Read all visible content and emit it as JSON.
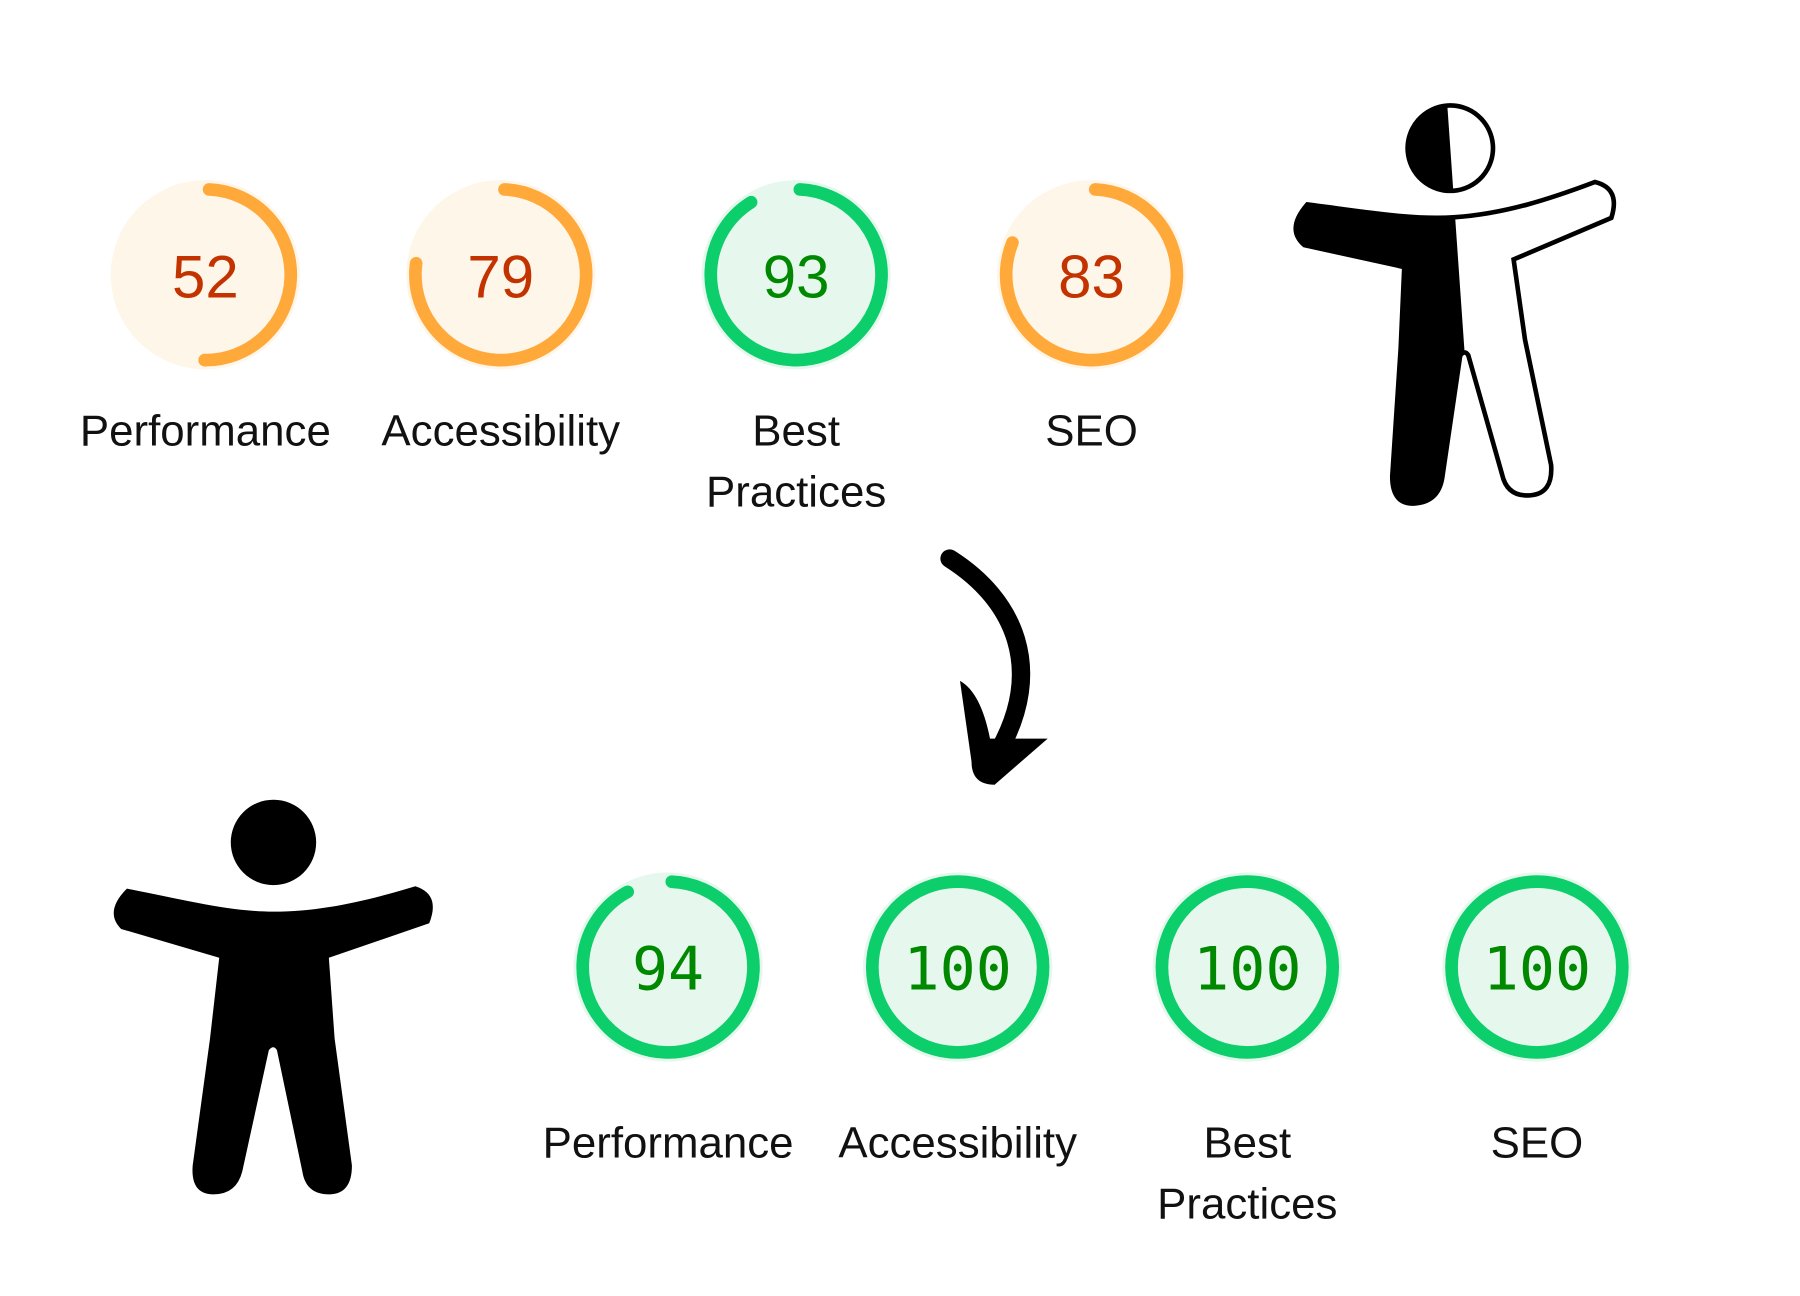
{
  "colors": {
    "average_arc": "#FFA93A",
    "average_fill": "#FFF6EA",
    "average_text": "#C33300",
    "good_arc": "#0CCE6B",
    "good_fill": "#E6F8ED",
    "good_text": "#008800"
  },
  "before": {
    "icon": "half-filled-accessibility-person-icon",
    "scores": [
      {
        "label": "Performance",
        "label2": "",
        "value": "52",
        "rating": "average"
      },
      {
        "label": "Accessibility",
        "label2": "",
        "value": "79",
        "rating": "average"
      },
      {
        "label": "Best",
        "label2": "Practices",
        "value": "93",
        "rating": "good"
      },
      {
        "label": "SEO",
        "label2": "",
        "value": "83",
        "rating": "average"
      }
    ]
  },
  "arrow": {
    "icon": "curved-arrow-down-icon"
  },
  "after": {
    "icon": "accessibility-person-icon",
    "scores": [
      {
        "label": "Performance",
        "label2": "",
        "value": "94",
        "rating": "good"
      },
      {
        "label": "Accessibility",
        "label2": "",
        "value": "100",
        "rating": "good"
      },
      {
        "label": "Best",
        "label2": "Practices",
        "value": "100",
        "rating": "good"
      },
      {
        "label": "SEO",
        "label2": "",
        "value": "100",
        "rating": "good"
      }
    ]
  }
}
